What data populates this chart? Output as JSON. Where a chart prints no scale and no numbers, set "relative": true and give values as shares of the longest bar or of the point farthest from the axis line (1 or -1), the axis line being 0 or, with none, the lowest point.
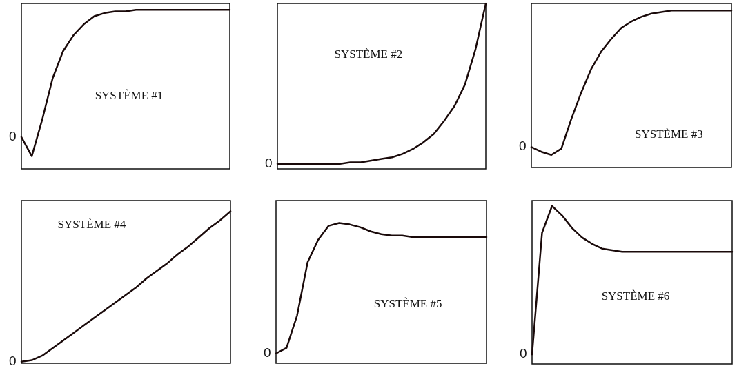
{
  "chart_data": [
    {
      "type": "line",
      "title": "SYSTÈME #1",
      "relative": true,
      "marker": "none",
      "line_style": "solid",
      "annotations": [
        "0"
      ],
      "categories": [
        null,
        null,
        null,
        null,
        null,
        null,
        null,
        null,
        null,
        null,
        null,
        null,
        null,
        null,
        null,
        null,
        null,
        null,
        null,
        null,
        null
      ],
      "series": [
        {
          "color": "#1a0a0a",
          "values": [
            0.2,
            0.08,
            0.31,
            0.57,
            0.74,
            0.84,
            0.91,
            0.96,
            0.98,
            0.99,
            0.99,
            1,
            1,
            1,
            1,
            1,
            1,
            1,
            1,
            1,
            1
          ]
        }
      ]
    },
    {
      "type": "line",
      "title": "SYSTÈME #2",
      "relative": true,
      "marker": "none",
      "line_style": "solid",
      "annotations": [
        "0"
      ],
      "categories": [
        null,
        null,
        null,
        null,
        null,
        null,
        null,
        null,
        null,
        null,
        null,
        null,
        null,
        null,
        null,
        null,
        null,
        null,
        null,
        null,
        null
      ],
      "series": [
        {
          "color": "#1a0a0a",
          "values": [
            0.03,
            0.03,
            0.03,
            0.03,
            0.03,
            0.03,
            0.03,
            0.04,
            0.04,
            0.05,
            0.06,
            0.07,
            0.09,
            0.12,
            0.16,
            0.21,
            0.29,
            0.38,
            0.51,
            0.72,
            1
          ]
        }
      ]
    },
    {
      "type": "line",
      "title": "SYSTÈME #3",
      "relative": true,
      "marker": "none",
      "line_style": "solid",
      "annotations": [
        "0"
      ],
      "categories": [
        null,
        null,
        null,
        null,
        null,
        null,
        null,
        null,
        null,
        null,
        null,
        null,
        null,
        null,
        null,
        null,
        null,
        null,
        null,
        null,
        null
      ],
      "series": [
        {
          "color": "#1a0a0a",
          "values": [
            0.13,
            0.1,
            0.08,
            0.12,
            0.31,
            0.48,
            0.63,
            0.74,
            0.82,
            0.89,
            0.93,
            0.96,
            0.98,
            0.99,
            1,
            1,
            1,
            1,
            1,
            1,
            1
          ]
        }
      ]
    },
    {
      "type": "line",
      "title": "SYSTÈME #4",
      "relative": true,
      "marker": "none",
      "line_style": "solid",
      "annotations": [
        "0"
      ],
      "categories": [
        null,
        null,
        null,
        null,
        null,
        null,
        null,
        null,
        null,
        null,
        null,
        null,
        null,
        null,
        null,
        null,
        null,
        null,
        null,
        null,
        null
      ],
      "series": [
        {
          "color": "#1a0a0a",
          "values": [
            0.01,
            0.02,
            0.05,
            0.1,
            0.15,
            0.2,
            0.25,
            0.3,
            0.35,
            0.4,
            0.45,
            0.5,
            0.56,
            0.61,
            0.66,
            0.72,
            0.77,
            0.83,
            0.89,
            0.94,
            1
          ]
        }
      ]
    },
    {
      "type": "line",
      "title": "SYSTÈME #5",
      "relative": true,
      "marker": "none",
      "line_style": "solid",
      "annotations": [
        "0"
      ],
      "categories": [
        null,
        null,
        null,
        null,
        null,
        null,
        null,
        null,
        null,
        null,
        null,
        null,
        null,
        null,
        null,
        null,
        null,
        null,
        null,
        null,
        null
      ],
      "series": [
        {
          "color": "#1a0a0a",
          "values": [
            0.07,
            0.11,
            0.34,
            0.72,
            0.88,
            0.98,
            1,
            0.99,
            0.97,
            0.94,
            0.92,
            0.91,
            0.91,
            0.9,
            0.9,
            0.9,
            0.9,
            0.9,
            0.9,
            0.9,
            0.9
          ]
        }
      ]
    },
    {
      "type": "line",
      "title": "SYSTÈME #6",
      "relative": true,
      "marker": "none",
      "line_style": "solid",
      "annotations": [
        "0"
      ],
      "categories": [
        null,
        null,
        null,
        null,
        null,
        null,
        null,
        null,
        null,
        null,
        null,
        null,
        null,
        null,
        null,
        null,
        null,
        null,
        null,
        null,
        null
      ],
      "series": [
        {
          "color": "#1a0a0a",
          "values": [
            0.06,
            0.83,
            1,
            0.94,
            0.86,
            0.8,
            0.76,
            0.73,
            0.72,
            0.71,
            0.71,
            0.71,
            0.71,
            0.71,
            0.71,
            0.71,
            0.71,
            0.71,
            0.71,
            0.71,
            0.71
          ]
        }
      ]
    }
  ]
}
